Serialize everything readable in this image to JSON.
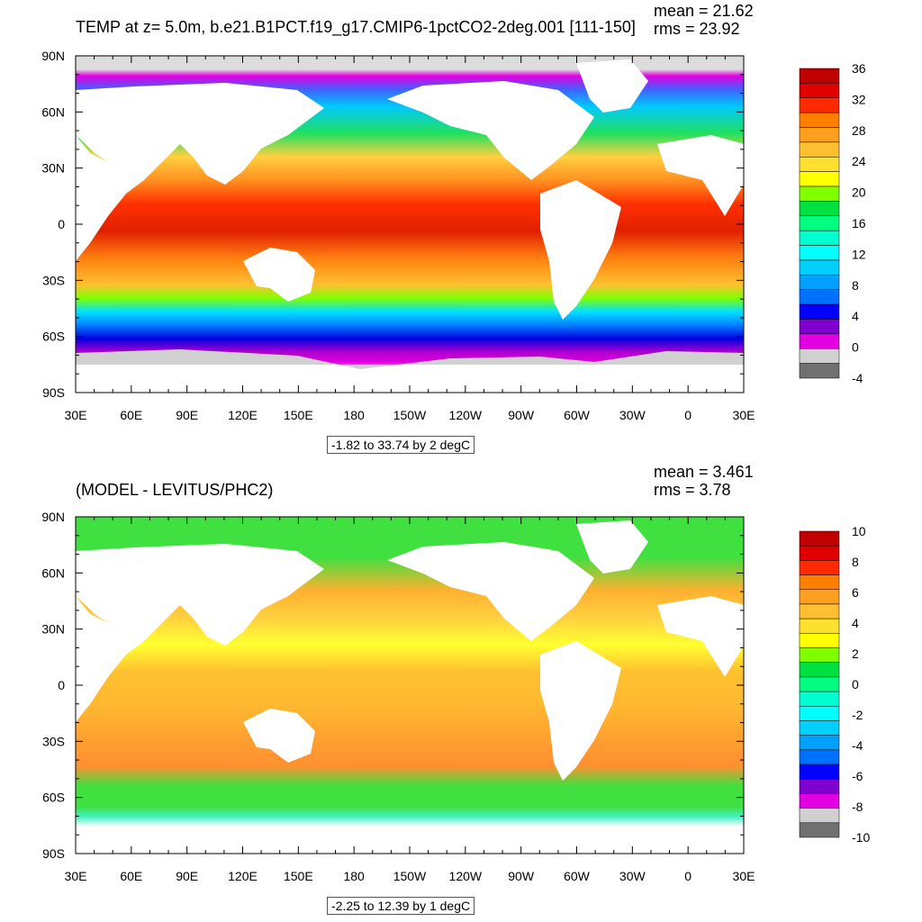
{
  "panels": [
    {
      "title": "TEMP at z=   5.0m, b.e21.B1PCT.f19_g17.CMIP6-1pctCO2-2deg.001 [111-150]",
      "mean_text": "mean = 21.62",
      "rms_text": "rms = 23.92",
      "range_text": "-1.82 to 33.74 by 2 degC",
      "colorbar": {
        "labels": [
          "36",
          "32",
          "28",
          "24",
          "20",
          "16",
          "12",
          "8",
          "4",
          "0",
          "-4"
        ],
        "colors": [
          "#c00000",
          "#e00000",
          "#ff2a00",
          "#ff7f00",
          "#ff9f20",
          "#ffbf30",
          "#ffdf30",
          "#ffff00",
          "#80ff00",
          "#00e040",
          "#00ff80",
          "#00ffd0",
          "#00ffff",
          "#00d0ff",
          "#00a0ff",
          "#0070ff",
          "#0000ff",
          "#8000d0",
          "#e000e0",
          "#d0d0d0",
          "#707070"
        ]
      }
    },
    {
      "title": "(MODEL - LEVITUS/PHC2)",
      "mean_text": "mean = 3.461",
      "rms_text": "rms = 3.78",
      "range_text": "-2.25 to 12.39 by 1 degC",
      "colorbar": {
        "labels": [
          "10",
          "8",
          "6",
          "4",
          "2",
          "0",
          "-2",
          "-4",
          "-6",
          "-8",
          "-10"
        ],
        "colors": [
          "#c00000",
          "#e00000",
          "#ff2a00",
          "#ff7f00",
          "#ff9f20",
          "#ffbf30",
          "#ffdf30",
          "#ffff00",
          "#80ff00",
          "#00e040",
          "#00ff80",
          "#00ffd0",
          "#00ffff",
          "#00d0ff",
          "#00a0ff",
          "#0070ff",
          "#0000ff",
          "#8000d0",
          "#e000e0",
          "#d0d0d0",
          "#707070"
        ]
      }
    }
  ],
  "axes": {
    "lon_labels": [
      "30E",
      "60E",
      "90E",
      "120E",
      "150E",
      "180",
      "150W",
      "120W",
      "90W",
      "60W",
      "30W",
      "0",
      "30E"
    ],
    "lat_labels": [
      "90N",
      "60N",
      "30N",
      "0",
      "30S",
      "60S",
      "90S"
    ]
  }
}
